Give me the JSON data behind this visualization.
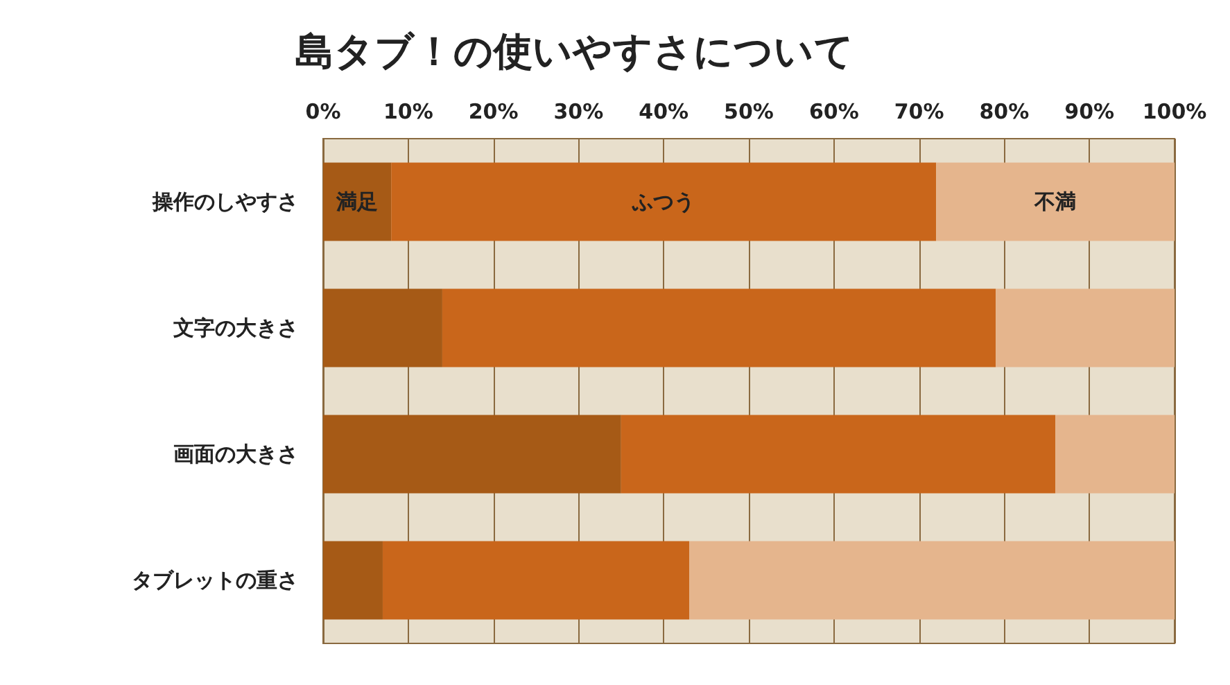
{
  "chart_data": {
    "type": "bar",
    "title": "島タブ！の使いやすさについて",
    "orientation": "horizontal",
    "stacked": true,
    "categories": [
      "操作のしやすさ",
      "文字の大きさ",
      "画面の大きさ",
      "タブレットの重さ"
    ],
    "series": [
      {
        "name": "満足",
        "color": "#a65a16",
        "values": [
          8,
          14,
          35,
          7
        ]
      },
      {
        "name": "ふつう",
        "color": "#c9661b",
        "values": [
          64,
          65,
          51,
          36
        ]
      },
      {
        "name": "不満",
        "color": "#e5b58d",
        "values": [
          28,
          21,
          14,
          57
        ]
      }
    ],
    "xlim": [
      0,
      100
    ],
    "xticks": [
      {
        "value": 0,
        "label": "0%"
      },
      {
        "value": 10,
        "label": "10%"
      },
      {
        "value": 20,
        "label": "20%"
      },
      {
        "value": 30,
        "label": "30%"
      },
      {
        "value": 40,
        "label": "40%"
      },
      {
        "value": 50,
        "label": "50%"
      },
      {
        "value": 60,
        "label": "60%"
      },
      {
        "value": 70,
        "label": "70%"
      },
      {
        "value": 80,
        "label": "80%"
      },
      {
        "value": 90,
        "label": "90%"
      },
      {
        "value": 100,
        "label": "100%"
      }
    ],
    "grid": "x",
    "legend": false
  }
}
